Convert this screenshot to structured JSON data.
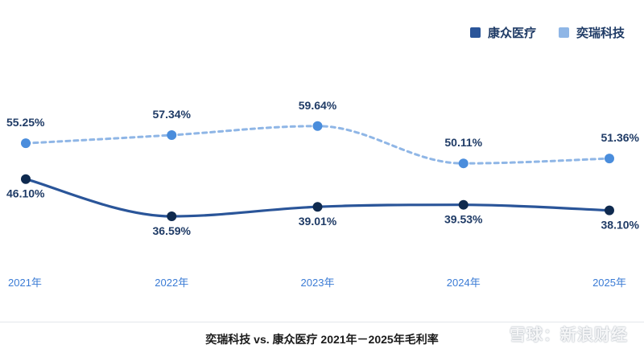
{
  "chart_data": {
    "type": "line",
    "title": "奕瑞科技 vs. 康众医疗 2021年－2025年毛利率",
    "categories": [
      "2021年",
      "2022年",
      "2023年",
      "2024年",
      "2025年"
    ],
    "ylim": [
      30,
      65
    ],
    "grid": false,
    "legend_position": "top-right",
    "series": [
      {
        "name": "康众医疗",
        "values": [
          46.1,
          36.59,
          39.01,
          39.53,
          38.1
        ],
        "labels": [
          "46.10%",
          "36.59%",
          "39.01%",
          "39.53%",
          "38.10%"
        ],
        "color": "#2a5599",
        "point_color": "#0f2a4f",
        "style": "solid"
      },
      {
        "name": "奕瑞科技",
        "values": [
          55.25,
          57.34,
          59.64,
          50.11,
          51.36
        ],
        "labels": [
          "55.25%",
          "57.34%",
          "59.64%",
          "50.11%",
          "51.36%"
        ],
        "color": "#8fb6e6",
        "point_color": "#4a8ddc",
        "style": "dashed"
      }
    ]
  },
  "legend": {
    "items": [
      {
        "label": "康众医疗",
        "color": "#2a5599"
      },
      {
        "label": "奕瑞科技",
        "color": "#8fb6e6"
      }
    ]
  },
  "watermark": "雪球：新浪财经"
}
